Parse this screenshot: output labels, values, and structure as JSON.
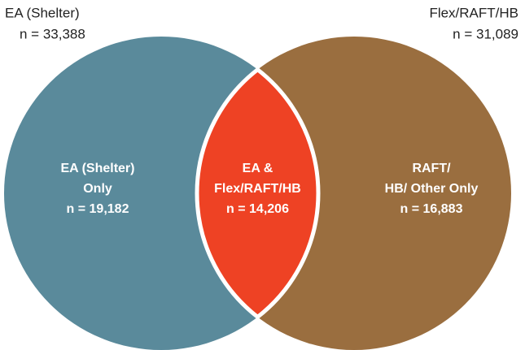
{
  "sets": [
    {
      "label": "EA (Shelter)",
      "count": "n = 33,388"
    },
    {
      "label": "Flex/RAFT/HB",
      "count": "n = 31,089"
    }
  ],
  "regions": [
    {
      "lines": [
        "EA (Shelter)",
        "Only",
        "n = 19,182"
      ]
    },
    {
      "lines": [
        "EA &",
        "Flex/RAFT/HB",
        "n = 14,206"
      ]
    },
    {
      "lines": [
        "RAFT/",
        "HB/ Other Only",
        "n = 16,883"
      ]
    }
  ]
}
